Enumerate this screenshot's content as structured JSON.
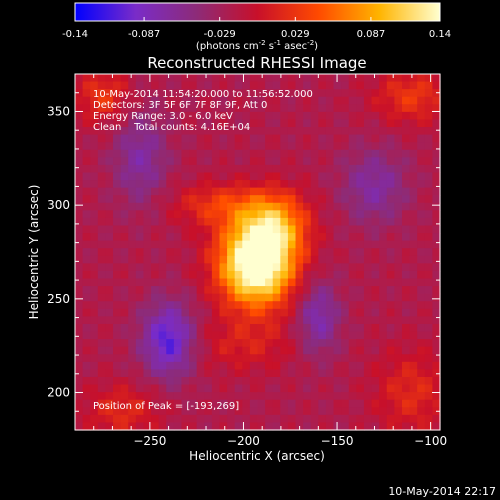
{
  "chart_data": {
    "type": "heatmap",
    "title": "Reconstructed RHESSI Image",
    "xlabel": "Heliocentric X (arcsec)",
    "ylabel": "Heliocentric Y (arcsec)",
    "xlim": [
      -290,
      -95
    ],
    "ylim": [
      180,
      370
    ],
    "xticks": [
      -250,
      -200,
      -150,
      -100
    ],
    "yticks": [
      200,
      250,
      300,
      350
    ],
    "colorbar": {
      "range": [
        -0.14,
        0.14
      ],
      "ticks": [
        "-0.14",
        "-0.087",
        "-0.029",
        "0.029",
        "0.087",
        "0.14"
      ],
      "tick_values": [
        -0.14,
        -0.087,
        -0.029,
        0.029,
        0.087,
        0.14
      ],
      "units_label": "(photons cm",
      "units_sup1": "-2",
      "units_mid": " s",
      "units_sup2": "-1",
      "units_mid2": " asec",
      "units_sup3": "-2",
      "units_end": ")",
      "colors": [
        "#0000ff",
        "#7a2cc8",
        "#8d2b78",
        "#c8102a",
        "#ff4a00",
        "#ffb400",
        "#ffffd0"
      ]
    },
    "annotations": {
      "line1": "10-May-2014 11:54:20.000 to 11:56:52.000",
      "line2": "Detectors: 3F 5F 6F 7F 8F 9F, Att 0",
      "line3": "Energy Range: 3.0 - 6.0 keV",
      "line4": "Clean    Total counts: 4.16E+04",
      "peak": "Position of Peak = [-193,269]"
    },
    "peak": {
      "x": -193,
      "y": 269
    },
    "sources": [
      {
        "x": -193,
        "y": 269,
        "amp": 0.2,
        "sx": 14,
        "sy": 16
      },
      {
        "x": -182,
        "y": 290,
        "amp": 0.08,
        "sx": 12,
        "sy": 12
      },
      {
        "x": -212,
        "y": 300,
        "amp": 0.05,
        "sx": 18,
        "sy": 8
      },
      {
        "x": -200,
        "y": 225,
        "amp": 0.03,
        "sx": 20,
        "sy": 10
      },
      {
        "x": -110,
        "y": 358,
        "amp": 0.05,
        "sx": 14,
        "sy": 10
      },
      {
        "x": -275,
        "y": 358,
        "amp": 0.05,
        "sx": 10,
        "sy": 10
      },
      {
        "x": -110,
        "y": 200,
        "amp": 0.04,
        "sx": 14,
        "sy": 16
      },
      {
        "x": -265,
        "y": 190,
        "amp": 0.04,
        "sx": 14,
        "sy": 10
      },
      {
        "x": -240,
        "y": 228,
        "amp": -0.09,
        "sx": 10,
        "sy": 14
      },
      {
        "x": -160,
        "y": 240,
        "amp": -0.06,
        "sx": 8,
        "sy": 14
      },
      {
        "x": -255,
        "y": 325,
        "amp": -0.05,
        "sx": 10,
        "sy": 18
      },
      {
        "x": -130,
        "y": 310,
        "amp": -0.05,
        "sx": 12,
        "sy": 14
      }
    ]
  },
  "footer_timestamp": "10-May-2014 22:17"
}
